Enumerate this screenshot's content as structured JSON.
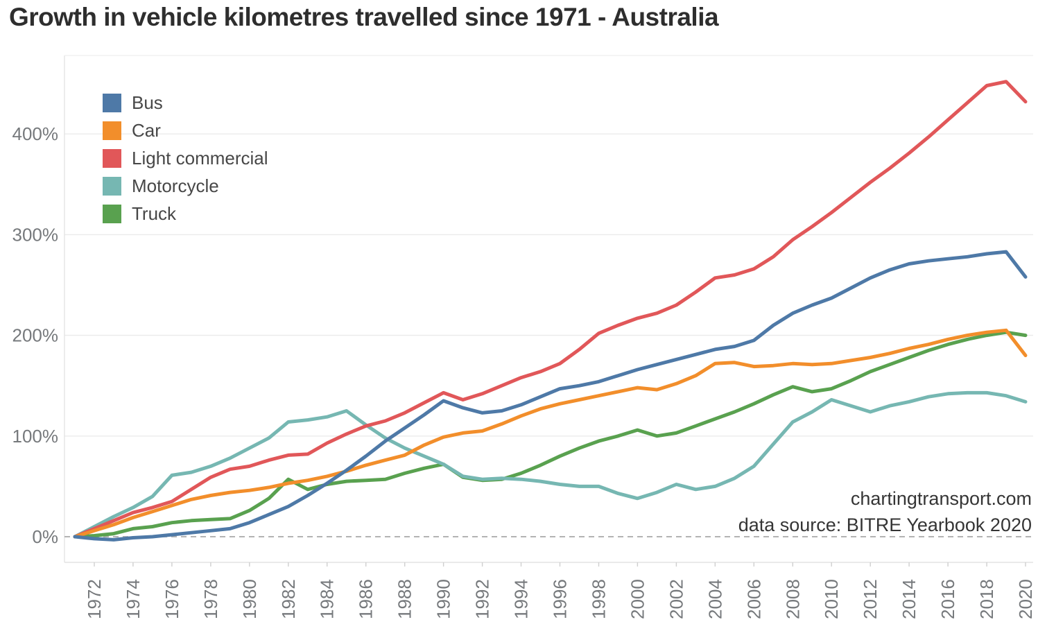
{
  "page": {
    "title": "Growth in vehicle kilometres travelled since 1971 - Australia",
    "annotation_line1": "chartingtransport.com",
    "annotation_line2": "data source: BITRE Yearbook 2020"
  },
  "chart_data": {
    "type": "line",
    "title": "Growth in vehicle kilometres travelled since 1971 - Australia",
    "xlabel": "",
    "ylabel": "",
    "unit": "% growth since 1971",
    "grid": "horizontal",
    "legend_position": "top-left",
    "xlim": [
      1970.5,
      2020.7
    ],
    "ylim": [
      -26,
      480
    ],
    "y_ticks": [
      0,
      100,
      200,
      300,
      400
    ],
    "y_tick_labels": [
      "0%",
      "100%",
      "200%",
      "300%",
      "400%"
    ],
    "x_tick_years": [
      1972,
      1974,
      1976,
      1978,
      1980,
      1982,
      1984,
      1986,
      1988,
      1990,
      1992,
      1994,
      1996,
      1998,
      2000,
      2002,
      2004,
      2006,
      2008,
      2010,
      2012,
      2014,
      2016,
      2018,
      2020
    ],
    "x": [
      1971,
      1972,
      1973,
      1974,
      1975,
      1976,
      1977,
      1978,
      1979,
      1980,
      1981,
      1982,
      1983,
      1984,
      1985,
      1986,
      1987,
      1988,
      1989,
      1990,
      1991,
      1992,
      1993,
      1994,
      1995,
      1996,
      1997,
      1998,
      1999,
      2000,
      2001,
      2002,
      2003,
      2004,
      2005,
      2006,
      2007,
      2008,
      2009,
      2010,
      2011,
      2012,
      2013,
      2014,
      2015,
      2016,
      2017,
      2018,
      2019,
      2020
    ],
    "series": [
      {
        "name": "Bus",
        "color": "#4e79a7",
        "values": [
          0,
          -2,
          -3,
          -1,
          0,
          2,
          4,
          6,
          8,
          14,
          22,
          30,
          41,
          53,
          66,
          80,
          95,
          108,
          121,
          135,
          128,
          123,
          125,
          131,
          139,
          147,
          150,
          154,
          160,
          166,
          171,
          176,
          181,
          186,
          189,
          195,
          210,
          222,
          230,
          237,
          247,
          257,
          265,
          271,
          274,
          276,
          278,
          281,
          283,
          258
        ]
      },
      {
        "name": "Car",
        "color": "#f28e2b",
        "values": [
          0,
          6,
          12,
          19,
          25,
          31,
          37,
          41,
          44,
          46,
          49,
          53,
          56,
          60,
          65,
          71,
          76,
          81,
          91,
          99,
          103,
          105,
          112,
          120,
          127,
          132,
          136,
          140,
          144,
          148,
          146,
          152,
          160,
          172,
          173,
          169,
          170,
          172,
          171,
          172,
          175,
          178,
          182,
          187,
          191,
          196,
          200,
          203,
          205,
          180
        ]
      },
      {
        "name": "Light commercial",
        "color": "#e15759",
        "values": [
          0,
          8,
          16,
          24,
          29,
          35,
          47,
          59,
          67,
          70,
          76,
          81,
          82,
          93,
          102,
          110,
          115,
          123,
          133,
          143,
          136,
          142,
          150,
          158,
          164,
          172,
          186,
          202,
          210,
          217,
          222,
          230,
          243,
          257,
          260,
          266,
          278,
          295,
          308,
          322,
          337,
          352,
          366,
          381,
          397,
          414,
          431,
          448,
          452,
          432
        ]
      },
      {
        "name": "Motorcycle",
        "color": "#76b7b2",
        "values": [
          0,
          10,
          20,
          29,
          40,
          61,
          64,
          70,
          78,
          88,
          98,
          114,
          116,
          119,
          125,
          111,
          98,
          88,
          80,
          72,
          60,
          57,
          58,
          57,
          55,
          52,
          50,
          50,
          43,
          38,
          44,
          52,
          47,
          50,
          58,
          70,
          92,
          114,
          124,
          136,
          130,
          124,
          130,
          134,
          139,
          142,
          143,
          143,
          140,
          134
        ]
      },
      {
        "name": "Truck",
        "color": "#59a14f",
        "values": [
          0,
          1,
          3,
          8,
          10,
          14,
          16,
          17,
          18,
          26,
          38,
          57,
          47,
          52,
          55,
          56,
          57,
          63,
          68,
          72,
          59,
          56,
          57,
          63,
          71,
          80,
          88,
          95,
          100,
          106,
          100,
          103,
          110,
          117,
          124,
          132,
          141,
          149,
          144,
          147,
          155,
          164,
          171,
          178,
          185,
          191,
          196,
          200,
          203,
          200
        ]
      }
    ]
  }
}
